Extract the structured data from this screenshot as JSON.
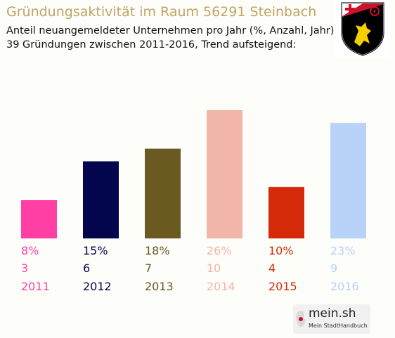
{
  "header": {
    "title": "Gründungsaktivität im Raum 56291 Steinbach",
    "subtitle1": "Anteil neuangemeldeter Unternehmen pro Jahr (%, Anzahl, Jahr)",
    "subtitle2": "39 Gründungen zwischen 2011-2016, Trend aufsteigend:"
  },
  "emblem": {
    "icon": "coat-of-arms-icon"
  },
  "logo": {
    "main": "mein.sh",
    "sub": "Mein StadtHandbuch"
  },
  "colors": {
    "title": "#c1a465",
    "bars": [
      "#ff3fa4",
      "#03064d",
      "#6b5922",
      "#f2b6a9",
      "#d42a0a",
      "#b8d2fa"
    ]
  },
  "chart_data": {
    "type": "bar",
    "categories": [
      "2011",
      "2012",
      "2013",
      "2014",
      "2015",
      "2016"
    ],
    "values": [
      3,
      6,
      7,
      10,
      4,
      9
    ],
    "percent_labels": [
      "8%",
      "15%",
      "18%",
      "26%",
      "10%",
      "23%"
    ],
    "count_labels": [
      "3",
      "6",
      "7",
      "10",
      "4",
      "9"
    ],
    "ylim": [
      0,
      10
    ],
    "grid": false,
    "legend": "none"
  }
}
